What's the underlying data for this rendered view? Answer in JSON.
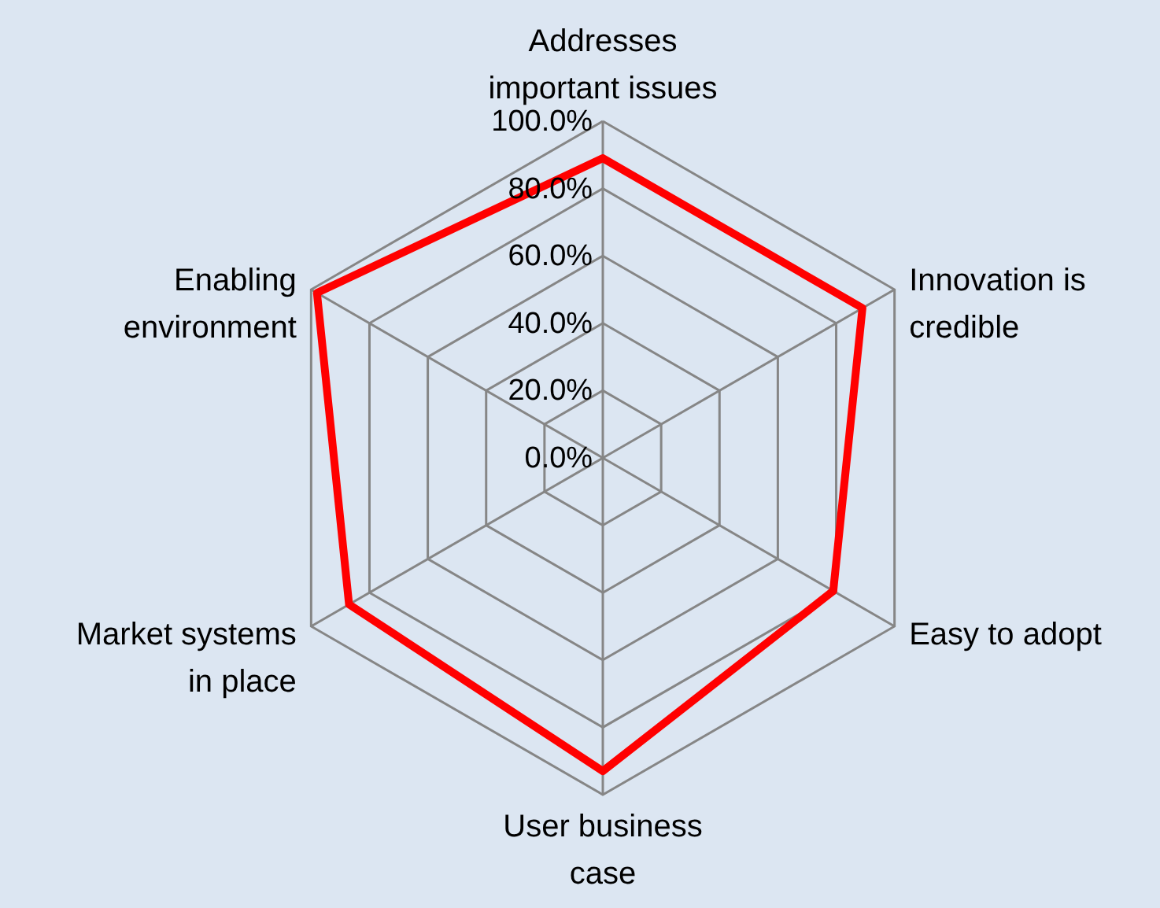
{
  "chart_data": {
    "type": "radar",
    "categories": [
      "Addresses\nimportant issues",
      "Innovation is\ncredible",
      "Easy to adopt",
      "User business\ncase",
      "Market systems\nin place",
      "Enabling\nenvironment"
    ],
    "series": [
      {
        "color": "#ff0000",
        "values": [
          89,
          89,
          79,
          93,
          87,
          98
        ]
      }
    ],
    "ylim": [
      0,
      100
    ],
    "yticks": [
      {
        "value": 0,
        "label": "0.0%"
      },
      {
        "value": 20,
        "label": "20.0%"
      },
      {
        "value": 40,
        "label": "40.0%"
      },
      {
        "value": 60,
        "label": "60.0%"
      },
      {
        "value": 80,
        "label": "80.0%"
      },
      {
        "value": 100,
        "label": "100.0%"
      }
    ],
    "grid": true
  }
}
